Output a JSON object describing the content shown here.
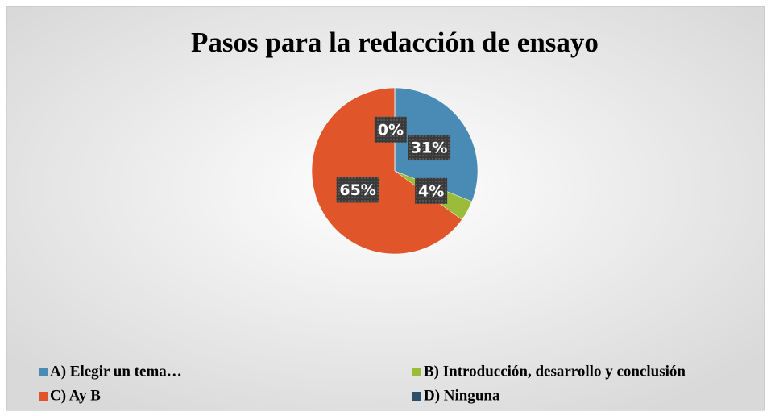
{
  "chart_data": {
    "type": "pie",
    "title": "Pasos para la redacción de ensayo",
    "categories": [
      "A) Elegir un tema…",
      "B) Introducción, desarrollo y conclusión",
      "C) Ay B",
      "D) Ninguna"
    ],
    "values": [
      31,
      4,
      65,
      0
    ],
    "value_labels": [
      "31%",
      "4%",
      "65%",
      "0%"
    ],
    "colors": [
      "#4A8BB6",
      "#9BBB3A",
      "#E0562A",
      "#2C4F6A"
    ],
    "legend": "bottom"
  }
}
